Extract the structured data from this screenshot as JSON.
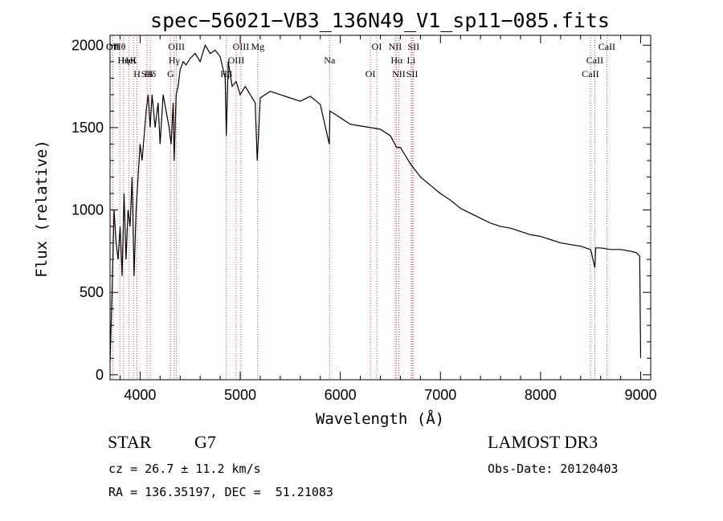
{
  "chart_data": {
    "type": "line",
    "title": "spec−56021−VB3_136N49_V1_sp11−085.fits",
    "xlabel": "Wavelength (Å)",
    "ylabel": "Flux (relative)",
    "xlim": [
      3700,
      9100
    ],
    "ylim": [
      -30,
      2060
    ],
    "xticks": [
      4000,
      5000,
      6000,
      7000,
      8000,
      9000
    ],
    "yticks": [
      0,
      500,
      1000,
      1500,
      2000
    ],
    "xtick_labels": [
      "4000",
      "5000",
      "6000",
      "7000",
      "8000",
      "9000"
    ],
    "ytick_labels": [
      "0",
      "500",
      "1000",
      "1500",
      "2000"
    ],
    "grid": false,
    "series": [
      {
        "name": "spectrum",
        "x": [
          3700,
          3720,
          3740,
          3760,
          3780,
          3800,
          3820,
          3840,
          3860,
          3880,
          3900,
          3920,
          3940,
          3960,
          3980,
          4000,
          4020,
          4040,
          4060,
          4080,
          4100,
          4120,
          4150,
          4180,
          4200,
          4230,
          4260,
          4290,
          4310,
          4330,
          4340,
          4360,
          4380,
          4400,
          4430,
          4460,
          4500,
          4550,
          4600,
          4650,
          4700,
          4750,
          4800,
          4850,
          4861,
          4880,
          4920,
          4960,
          5000,
          5050,
          5100,
          5150,
          5170,
          5183,
          5200,
          5250,
          5300,
          5400,
          5500,
          5600,
          5700,
          5800,
          5890,
          5896,
          5950,
          6000,
          6100,
          6200,
          6300,
          6400,
          6500,
          6563,
          6600,
          6700,
          6800,
          6900,
          7000,
          7100,
          7200,
          7300,
          7400,
          7500,
          7600,
          7700,
          7800,
          7900,
          8000,
          8100,
          8200,
          8300,
          8400,
          8500,
          8542,
          8550,
          8600,
          8700,
          8800,
          8900,
          8960,
          8990,
          9000
        ],
        "y": [
          80,
          500,
          1000,
          800,
          700,
          900,
          600,
          1100,
          700,
          1000,
          900,
          1200,
          600,
          1000,
          1200,
          1400,
          1300,
          1450,
          1600,
          1700,
          1500,
          1700,
          1500,
          1650,
          1400,
          1700,
          1600,
          1500,
          1400,
          1650,
          1300,
          1700,
          1750,
          1850,
          1900,
          1880,
          1920,
          1950,
          1900,
          2000,
          1950,
          1970,
          1930,
          1800,
          1450,
          1900,
          1750,
          1780,
          1700,
          1750,
          1700,
          1650,
          1300,
          1450,
          1680,
          1700,
          1720,
          1700,
          1680,
          1660,
          1690,
          1640,
          1400,
          1600,
          1580,
          1560,
          1520,
          1510,
          1500,
          1490,
          1450,
          1380,
          1380,
          1280,
          1200,
          1150,
          1100,
          1060,
          1010,
          980,
          950,
          920,
          900,
          890,
          870,
          850,
          840,
          820,
          800,
          790,
          780,
          760,
          650,
          770,
          770,
          760,
          760,
          750,
          740,
          720,
          100
        ]
      }
    ],
    "line_ids": [
      {
        "label": "Hθ",
        "x": 3798
      },
      {
        "label": "K",
        "x": 3934
      },
      {
        "label": "Hδ",
        "x": 4102
      },
      {
        "label": "OII",
        "x": 3727
      },
      {
        "label": "HeI",
        "x": 3889
      },
      {
        "label": "SII",
        "x": 4069
      },
      {
        "label": "OII",
        "x": 3727
      },
      {
        "label": "Hη",
        "x": 3835
      },
      {
        "label": "H",
        "x": 3969
      },
      {
        "label": "OIII",
        "x": 4363
      },
      {
        "label": "Hγ",
        "x": 4341
      },
      {
        "label": "G",
        "x": 4304
      },
      {
        "label": "OIII",
        "x": 5007
      },
      {
        "label": "OIII",
        "x": 4959
      },
      {
        "label": "Hβ",
        "x": 4861
      },
      {
        "label": "Mg",
        "x": 5175
      },
      {
        "label": "Na",
        "x": 5893
      },
      {
        "label": "OI",
        "x": 6300
      },
      {
        "label": "OI",
        "x": 6364
      },
      {
        "label": "Hα",
        "x": 6563
      },
      {
        "label": "SII",
        "x": 6717
      },
      {
        "label": "NII",
        "x": 6548
      },
      {
        "label": "Li",
        "x": 6708
      },
      {
        "label": "NII",
        "x": 6584
      },
      {
        "label": "SII",
        "x": 6731
      },
      {
        "label": "CaII",
        "x": 8542
      },
      {
        "label": "CaII",
        "x": 8498
      },
      {
        "label": "CaII",
        "x": 8662
      }
    ]
  },
  "info": {
    "object_class": "STAR",
    "subclass": "G7",
    "survey": "LAMOST DR3",
    "cz": "cz = 26.7 ± 11.2 km/s",
    "obs_date": "Obs-Date: 20120403",
    "coords": "RA = 136.35197, DEC =  51.21083"
  }
}
